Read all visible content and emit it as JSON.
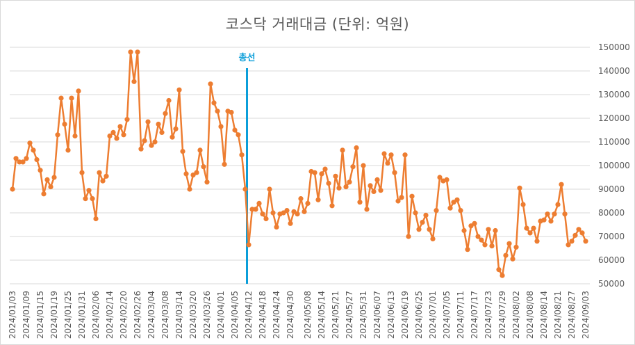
{
  "chart_data": {
    "type": "line",
    "title": "코스닥 거래대금 (단위: 억원)",
    "xlabel": "",
    "ylabel": "",
    "ylim": [
      50000,
      150000
    ],
    "yticks": [
      50000,
      60000,
      70000,
      80000,
      90000,
      100000,
      110000,
      120000,
      130000,
      140000,
      150000
    ],
    "y_axis_side": "right",
    "grid": true,
    "legend": "none",
    "colors": {
      "series": "#ED7D31",
      "marker_line": "#0B9ED9",
      "grid": "#d9d9d9",
      "text": "#595959"
    },
    "x_tick_labels": [
      "2024/01/03",
      "2024/01/09",
      "2024/01/15",
      "2024/01/19",
      "2024/01/25",
      "2024/01/31",
      "2024/02/06",
      "2024/02/14",
      "2024/02/20",
      "2024/02/26",
      "2024/03/04",
      "2024/03/08",
      "2024/03/14",
      "2024/03/20",
      "2024/03/26",
      "2024/04/01",
      "2024/04/05",
      "2024/04/12",
      "2024/04/18",
      "2024/04/24",
      "2024/04/30",
      "2024/05/08",
      "2024/05/14",
      "2024/05/21",
      "2024/05/27",
      "2024/05/31",
      "2024/06/07",
      "2024/06/13",
      "2024/06/19",
      "2024/06/25",
      "2024/07/01",
      "2024/07/05",
      "2024/07/11",
      "2024/07/17",
      "2024/07/23",
      "2024/07/29",
      "2024/08/02",
      "2024/08/08",
      "2024/08/14",
      "2024/08/21",
      "2024/08/27",
      "2024/09/03"
    ],
    "annotation": {
      "label": "총선",
      "after_category": "2024/04/05"
    },
    "series": [
      {
        "values": [
          90000,
          103000,
          101500,
          101500,
          103000,
          109500,
          106500,
          102500,
          98000,
          88000,
          94000,
          91000,
          95000,
          113000,
          128500,
          117500,
          106500,
          128500,
          112500,
          131500,
          97000,
          86000,
          89500,
          86000,
          77500,
          97000,
          93500,
          95500,
          112500,
          114000,
          111500,
          116500,
          113000,
          119500,
          148000,
          135500,
          148000,
          107000,
          110500,
          118500,
          108500,
          110000,
          117500,
          114000,
          122000,
          127500,
          112000,
          115500,
          132000,
          106000,
          96500,
          90000,
          96000,
          97000,
          106500,
          99500,
          93000,
          134500,
          126500,
          123000,
          116500,
          100500,
          123000,
          122500,
          115000,
          113000,
          104500,
          90000,
          66500,
          81500,
          81500,
          84000,
          79500,
          77500,
          90000,
          80000,
          74000,
          79500,
          80000,
          81000,
          75500,
          80500,
          79500,
          86000,
          80500,
          84000,
          97500,
          97000,
          85500,
          96500,
          98500,
          92500,
          83000,
          95500,
          90500,
          106500,
          91000,
          93000,
          99500,
          107500,
          84500,
          100000,
          81500,
          91500,
          89000,
          94000,
          89500,
          105000,
          101000,
          104500,
          97000,
          85000,
          86500,
          104500,
          70000,
          87000,
          80000,
          73000,
          76000,
          79000,
          73000,
          69000,
          81000,
          95000,
          93500,
          94000,
          82000,
          84500,
          85500,
          81000,
          72500,
          64500,
          74500,
          75500,
          70000,
          68500,
          66500,
          73000,
          66000,
          72500,
          56000,
          53500,
          62000,
          67000,
          60500,
          65500,
          90500,
          83500,
          73500,
          71500,
          73500,
          68000,
          76500,
          77000,
          79500,
          76500,
          79500,
          83500,
          92000,
          79500,
          66500,
          68000,
          70500,
          73000,
          71500,
          68000
        ]
      }
    ]
  }
}
